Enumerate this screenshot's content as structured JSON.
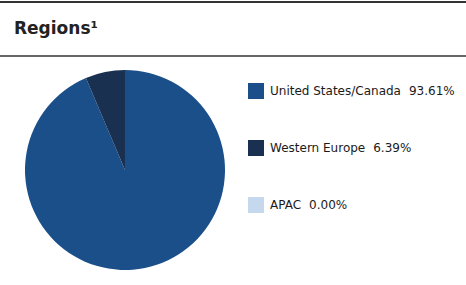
{
  "chart_data": {
    "type": "pie",
    "title": "Regions¹",
    "categories": [
      "United States/Canada",
      "Western Europe",
      "APAC"
    ],
    "values": [
      93.61,
      6.39,
      0.001
    ],
    "value_labels": [
      "93.61%",
      "6.39%",
      "0.00%"
    ],
    "colors": [
      "#1a4f8a",
      "#1a3050",
      "#c5d8ed"
    ],
    "legend": "right"
  }
}
